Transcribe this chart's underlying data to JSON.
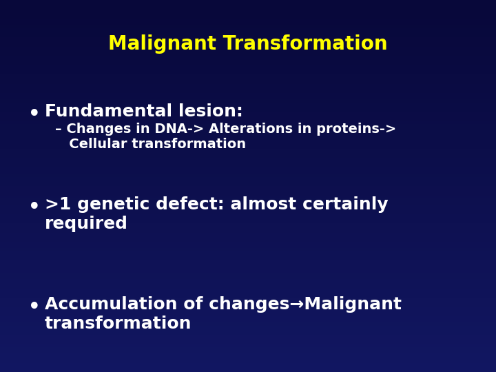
{
  "title": "Malignant Transformation",
  "title_color": "#ffff00",
  "title_fontsize": 20,
  "background_color": "#08083a",
  "bullet_color": "#ffffff",
  "bullet_fontsize": 18,
  "sub_fontsize": 14,
  "bullets": [
    {
      "text": "Fundamental lesion:",
      "sub": "– Changes in DNA-> Alterations in proteins->\n   Cellular transformation"
    },
    {
      "text": ">1 genetic defect: almost certainly\nrequired",
      "sub": null
    },
    {
      "text": "Accumulation of changes→Malignant\ntransformation",
      "sub": null
    }
  ]
}
